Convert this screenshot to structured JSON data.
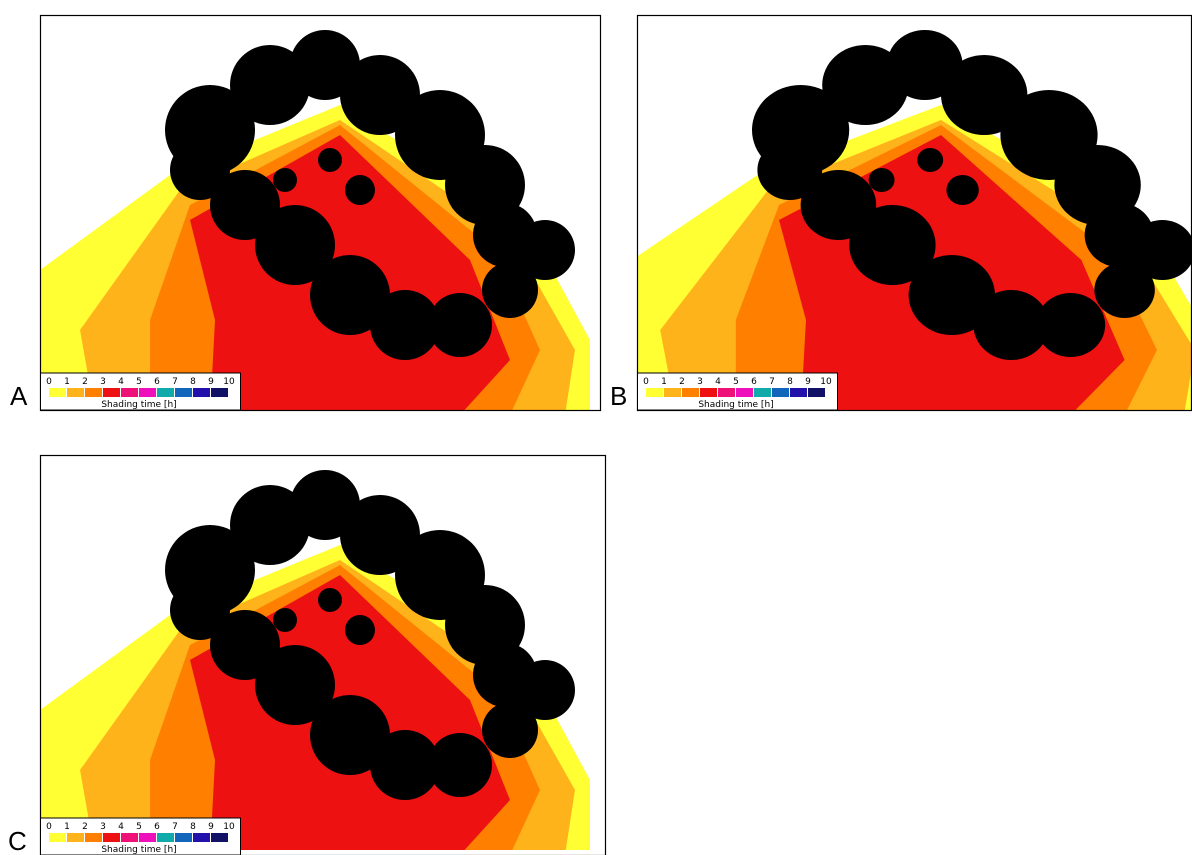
{
  "panels": [
    {
      "label": "A",
      "legend": {
        "ticks": [
          "0",
          "1",
          "2",
          "3",
          "4",
          "5",
          "6",
          "7",
          "8",
          "9",
          "10"
        ],
        "title": "Shading time [h]"
      }
    },
    {
      "label": "B",
      "legend": {
        "ticks": [
          "0",
          "1",
          "2",
          "3",
          "4",
          "5",
          "6",
          "7",
          "8",
          "9",
          "10"
        ],
        "title": "Shading time [h]"
      }
    },
    {
      "label": "C",
      "legend": {
        "ticks": [
          "0",
          "1",
          "2",
          "3",
          "4",
          "5",
          "6",
          "7",
          "8",
          "9",
          "10"
        ],
        "title": "Shading time [h]"
      }
    }
  ],
  "legend_colors": [
    "#ffff33",
    "#ffb31a",
    "#ff8000",
    "#ee1111",
    "#ee1177",
    "#ee11bb",
    "#11aaaa",
    "#1166bb",
    "#2211aa",
    "#111166"
  ]
}
